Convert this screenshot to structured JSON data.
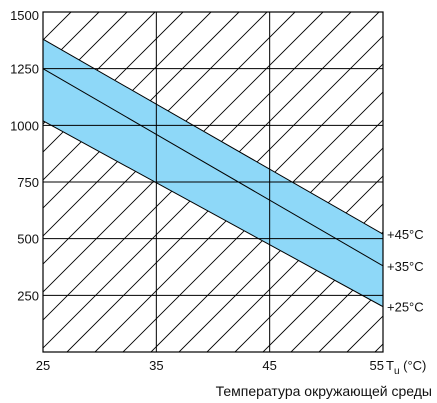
{
  "chart_data": {
    "type": "area",
    "title": "",
    "xlabel": "Температура окружающей среды",
    "x_unit_label": "T",
    "x_unit_subscript": "u",
    "x_unit_suffix": " (°C)",
    "xlim": [
      25,
      55
    ],
    "ylim": [
      0,
      1500
    ],
    "x_ticks": [
      "25",
      "35",
      "45",
      "55"
    ],
    "y_ticks": [
      "250",
      "500",
      "750",
      "1000",
      "1250",
      "1500"
    ],
    "grid": true,
    "band": {
      "name": "+35°C",
      "color": "#8ed8f8",
      "upper": {
        "x": [
          25,
          55
        ],
        "y": [
          1380,
          520
        ]
      },
      "lower": {
        "x": [
          25,
          55
        ],
        "y": [
          1020,
          200
        ]
      }
    },
    "center_line": {
      "x": [
        25,
        55
      ],
      "y": [
        1250,
        380
      ]
    },
    "series_labels": [
      {
        "text": "+45°C",
        "y": 520
      },
      {
        "text": "+35°C",
        "y": 380
      },
      {
        "text": "+25°C",
        "y": 200
      }
    ]
  }
}
